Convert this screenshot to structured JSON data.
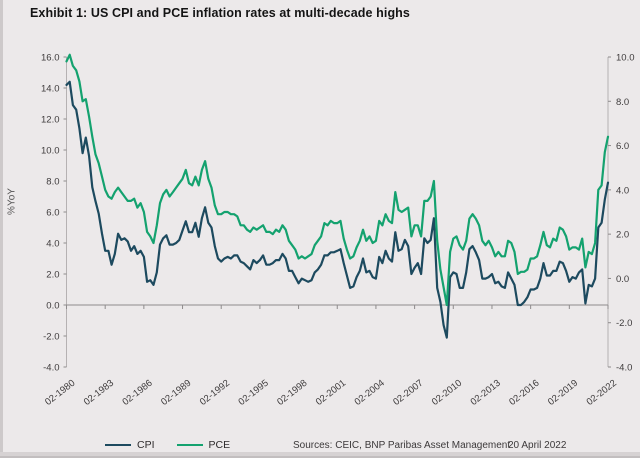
{
  "title": "Exhibit 1: US CPI and PCE inflation rates at multi-decade highs",
  "footer": {
    "sources": "Sources: CEIC, BNP Paribas Asset Management",
    "date": "20 April 2022"
  },
  "chart_data": {
    "type": "line",
    "title": "Exhibit 1: US CPI and PCE inflation rates at multi-decade highs",
    "ylabel_left": "%YoY",
    "xlabel": "",
    "grid": false,
    "legend_position": "bottom-left",
    "x_start": "1980-02",
    "x_end": "2022-02",
    "points_frequency": "quarterly",
    "x_tick_labels": [
      "02-1980",
      "02-1983",
      "02-1986",
      "02-1989",
      "02-1992",
      "02-1995",
      "02-1998",
      "02-2001",
      "02-2004",
      "02-2007",
      "02-2010",
      "02-2013",
      "02-2016",
      "02-2019",
      "02-2022"
    ],
    "left_axis": {
      "min": -4,
      "max": 16,
      "step": 2,
      "tick_labels": [
        "16.0",
        "14.0",
        "12.0",
        "10.0",
        "8.0",
        "6.0",
        "4.0",
        "2.0",
        "0.0",
        "-2.0",
        "-4.0"
      ]
    },
    "right_axis": {
      "min": -4,
      "max": 10,
      "step": 2,
      "tick_labels": [
        "10.0",
        "8.0",
        "6.0",
        "4.0",
        "2.0",
        "0.0",
        "-2.0",
        "-4.0"
      ]
    },
    "series": [
      {
        "name": "CPI",
        "axis": "left",
        "color": "#1d4a5f",
        "values": [
          14.2,
          14.4,
          12.9,
          12.6,
          11.4,
          9.8,
          10.8,
          9.6,
          7.6,
          6.7,
          5.9,
          4.6,
          3.5,
          3.5,
          2.6,
          3.3,
          4.6,
          4.2,
          4.3,
          4.1,
          3.5,
          3.8,
          3.3,
          3.5,
          3.1,
          1.5,
          1.6,
          1.3,
          2.1,
          3.9,
          4.3,
          4.5,
          3.9,
          3.9,
          4.0,
          4.2,
          4.8,
          5.4,
          4.7,
          4.7,
          5.3,
          4.4,
          5.6,
          6.3,
          5.3,
          5.0,
          3.8,
          3.0,
          2.8,
          3.0,
          3.1,
          3.0,
          3.2,
          3.2,
          2.8,
          2.7,
          2.5,
          2.3,
          2.9,
          2.7,
          2.9,
          3.2,
          2.6,
          2.6,
          2.7,
          2.9,
          2.9,
          3.3,
          3.0,
          2.2,
          2.2,
          1.8,
          1.4,
          1.7,
          1.6,
          1.5,
          1.6,
          2.1,
          2.3,
          2.6,
          3.2,
          3.2,
          3.4,
          3.4,
          3.5,
          3.6,
          2.7,
          1.9,
          1.1,
          1.2,
          1.8,
          2.2,
          3.0,
          2.1,
          2.2,
          1.8,
          1.7,
          3.1,
          2.7,
          3.5,
          3.0,
          2.8,
          4.7,
          3.5,
          3.6,
          4.2,
          3.8,
          2.0,
          2.4,
          2.7,
          2.0,
          4.3,
          4.0,
          4.2,
          5.6,
          1.1,
          0.2,
          -1.3,
          -2.1,
          1.8,
          2.1,
          2.0,
          1.1,
          1.1,
          2.1,
          3.6,
          3.8,
          3.4,
          2.9,
          1.7,
          1.7,
          1.8,
          2.0,
          1.4,
          1.5,
          1.2,
          1.1,
          2.1,
          1.7,
          1.3,
          0.0,
          0.0,
          0.2,
          0.5,
          1.0,
          1.0,
          1.1,
          1.7,
          2.7,
          1.9,
          1.9,
          2.2,
          2.2,
          2.8,
          2.7,
          2.2,
          1.5,
          1.8,
          1.7,
          2.1,
          2.3,
          0.1,
          1.3,
          1.2,
          1.7,
          5.0,
          5.3,
          6.8,
          7.9
        ]
      },
      {
        "name": "PCE",
        "axis": "right",
        "color": "#14a26f",
        "values": [
          9.8,
          10.1,
          9.6,
          9.4,
          8.9,
          8.0,
          8.1,
          7.3,
          6.4,
          5.6,
          5.2,
          4.6,
          4.0,
          3.7,
          3.6,
          3.9,
          4.1,
          3.9,
          3.7,
          3.5,
          3.5,
          3.6,
          3.2,
          3.4,
          3.0,
          2.1,
          1.9,
          1.6,
          2.4,
          3.4,
          3.8,
          4.0,
          3.7,
          3.9,
          4.1,
          4.3,
          4.5,
          4.9,
          4.3,
          4.2,
          4.6,
          4.2,
          4.9,
          5.3,
          4.5,
          4.1,
          3.3,
          2.9,
          2.9,
          3.0,
          3.0,
          2.9,
          2.9,
          2.8,
          2.4,
          2.4,
          2.2,
          2.1,
          2.3,
          2.2,
          2.3,
          2.4,
          2.1,
          2.1,
          2.0,
          2.2,
          2.1,
          2.4,
          2.2,
          1.7,
          1.5,
          1.3,
          0.9,
          1.0,
          0.9,
          1.0,
          1.1,
          1.5,
          1.7,
          1.9,
          2.5,
          2.4,
          2.6,
          2.5,
          2.5,
          2.6,
          1.8,
          1.3,
          0.9,
          1.0,
          1.4,
          1.7,
          2.2,
          1.7,
          1.9,
          1.6,
          1.7,
          2.6,
          2.4,
          2.9,
          2.6,
          2.5,
          3.9,
          3.1,
          3.0,
          3.1,
          3.2,
          1.9,
          2.4,
          2.4,
          1.9,
          3.5,
          3.5,
          3.7,
          4.4,
          1.7,
          0.4,
          -0.4,
          -1.2,
          1.2,
          1.8,
          1.9,
          1.5,
          1.3,
          1.7,
          2.7,
          2.9,
          2.7,
          2.4,
          1.7,
          1.5,
          1.7,
          1.4,
          1.0,
          1.2,
          1.0,
          1.0,
          1.7,
          1.6,
          1.2,
          0.2,
          0.3,
          0.3,
          0.4,
          0.9,
          0.9,
          1.0,
          1.5,
          2.1,
          1.5,
          1.4,
          1.8,
          1.7,
          2.3,
          2.2,
          1.9,
          1.3,
          1.4,
          1.4,
          1.3,
          1.8,
          0.5,
          1.2,
          1.1,
          1.6,
          4.0,
          4.2,
          5.7,
          6.4
        ]
      }
    ]
  }
}
